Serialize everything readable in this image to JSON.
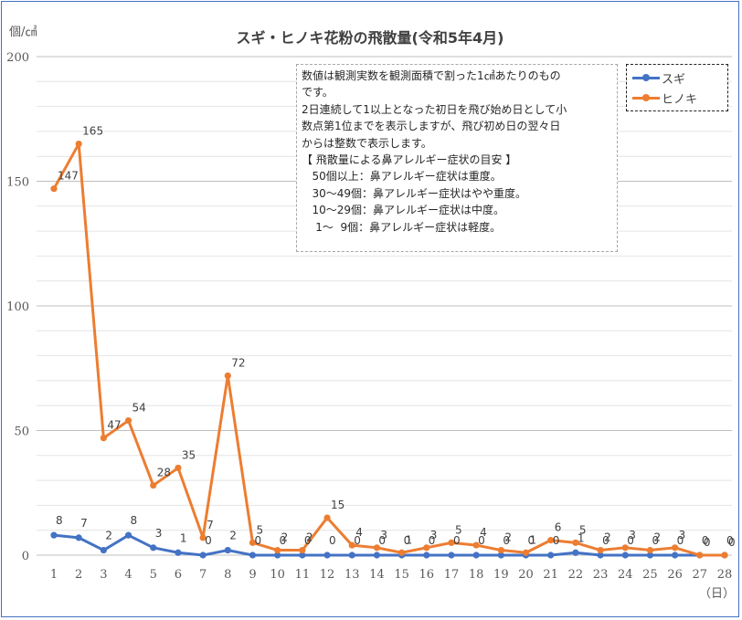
{
  "chart_data": {
    "type": "line",
    "title": "スギ・ヒノキ花粉の飛散量(令和5年4月)",
    "ylabel": "個/㎠",
    "xlabel": "（日）",
    "ylim": [
      0,
      200
    ],
    "yticks": [
      0,
      50,
      100,
      150,
      200
    ],
    "grid": true,
    "legend_position": "top-right",
    "categories": [
      "1",
      "2",
      "3",
      "4",
      "5",
      "6",
      "7",
      "8",
      "9",
      "10",
      "11",
      "12",
      "13",
      "14",
      "15",
      "16",
      "17",
      "18",
      "19",
      "20",
      "21",
      "22",
      "23",
      "24",
      "25",
      "26",
      "27",
      "28"
    ],
    "series": [
      {
        "name": "スギ",
        "color": "#4472c4",
        "values": [
          8,
          7,
          2,
          8,
          3,
          1,
          0,
          2,
          0,
          0,
          0,
          0,
          0,
          0,
          0,
          0,
          0,
          0,
          0,
          0,
          0,
          1,
          0,
          0,
          0,
          0,
          0,
          0
        ],
        "labels": [
          "8",
          "7",
          "2",
          "8",
          "3",
          "1",
          "0",
          "2",
          "0",
          "0",
          "0",
          "0",
          "0",
          "0",
          "0",
          "0",
          "0",
          "0",
          "0",
          "0",
          "0",
          "1",
          "0",
          "0",
          "0",
          "0",
          "0",
          "0"
        ]
      },
      {
        "name": "ヒノキ",
        "color": "#ed7d31",
        "values": [
          147,
          165,
          47,
          54,
          28,
          35,
          7,
          72,
          5,
          2,
          2,
          15,
          4,
          3,
          1,
          3,
          5,
          4,
          2,
          1,
          6,
          5,
          2,
          3,
          2,
          3,
          0,
          0
        ],
        "labels": [
          "147",
          "165",
          "47",
          "54",
          "28",
          "35",
          "7",
          "72",
          "5",
          "2",
          "2",
          "15",
          "4",
          "3",
          "1",
          "3",
          "5",
          "4",
          "2",
          "1",
          "6",
          "5",
          "2",
          "3",
          "2",
          "3",
          "0",
          "0"
        ]
      }
    ]
  },
  "note": {
    "lines": [
      "数値は観測実数を観測面積で割った1㎠あたりのもの",
      "です。",
      "2日連続して1以上となった初日を飛び始め日として小",
      "数点第1位までを表示しますが、飛び初め日の翌々日",
      "からは整数で表示します。",
      "【 飛散量による鼻アレルギー症状の目安 】",
      "   50個以上：鼻アレルギー症状は重度。",
      "   30～49個：鼻アレルギー症状はやや重度。",
      "   10～29個：鼻アレルギー症状は中度。",
      "    1～  9個：鼻アレルギー症状は軽度。"
    ]
  }
}
